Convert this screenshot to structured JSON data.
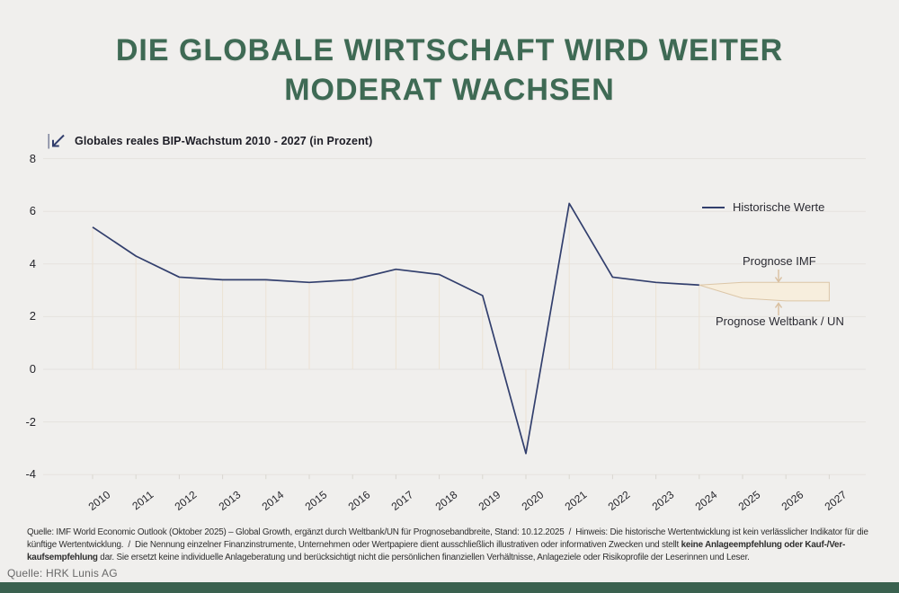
{
  "title": {
    "line1": "DIE GLOBALE WIRTSCHAFT WIRD WEITER",
    "line2": "MODERAT WACHSEN"
  },
  "chart": {
    "subtitle": "Globales reales BIP-Wachstum 2010 - 2027 (in Prozent)",
    "legend": {
      "historical": "Historische Werte"
    },
    "annotations": {
      "imf": "Prognose IMF",
      "wb_un": "Prognose Weltbank / UN"
    },
    "colors": {
      "background": "#f0efed",
      "title_green": "#3e6a54",
      "line_navy": "#323f6d",
      "band_fill": "#f7eedd",
      "band_stroke": "#dcc6a7",
      "arrow_tan": "#d9bf9f",
      "gridline": "#e5e2de",
      "stem": "#ece2d4",
      "axis_tick": "#d9d6d0",
      "bottom_bar_green": "#3a614f"
    }
  },
  "chart_data": {
    "type": "line",
    "title": "Globales reales BIP-Wachstum 2010 - 2027 (in Prozent)",
    "categories": [
      "2010",
      "2011",
      "2012",
      "2013",
      "2014",
      "2015",
      "2016",
      "2017",
      "2018",
      "2019",
      "2020",
      "2021",
      "2022",
      "2023",
      "2024",
      "2025",
      "2026",
      "2027"
    ],
    "y_ticks": [
      8,
      6,
      4,
      2,
      0,
      -2,
      -4
    ],
    "ylim": [
      -4.6,
      8
    ],
    "grid": "horizontal",
    "legend_position": "right",
    "series": [
      {
        "name": "Historische Werte",
        "type": "line",
        "color": "#323f6d",
        "years": [
          "2010",
          "2011",
          "2012",
          "2013",
          "2014",
          "2015",
          "2016",
          "2017",
          "2018",
          "2019",
          "2020",
          "2021",
          "2022",
          "2023",
          "2024"
        ],
        "values": [
          5.4,
          4.3,
          3.5,
          3.4,
          3.4,
          3.3,
          3.4,
          3.8,
          3.6,
          2.8,
          -3.2,
          6.3,
          3.5,
          3.3,
          3.2
        ]
      },
      {
        "name": "Prognose IMF",
        "type": "band-upper",
        "years": [
          "2024",
          "2025",
          "2026",
          "2027"
        ],
        "values": [
          3.2,
          3.3,
          3.3,
          3.3
        ]
      },
      {
        "name": "Prognose Weltbank / UN",
        "type": "band-lower",
        "years": [
          "2024",
          "2025",
          "2026",
          "2027"
        ],
        "values": [
          3.2,
          2.7,
          2.6,
          2.6
        ]
      }
    ]
  },
  "footer": {
    "lines": [
      [
        {
          "t": "Quelle: IMF World Economic Outlook (Oktober 2025) – Global Growth, ergänzt durch Weltbank/UN für Prognosebandbreite, Stand: 10.12.2025  /  Hinweis: Die historische Wertentwicklung ist kein verlässlicher Indikator für die",
          "b": false
        }
      ],
      [
        {
          "t": "künftige Wertentwicklung.  /  Die Nennung einzelner Finanzinstrumente, Unternehmen oder Wertpapiere dient ausschließlich illustrativen oder informativen Zwecken und stellt ",
          "b": false
        },
        {
          "t": "keine Anlageempfehlung oder Kauf-/Ver-",
          "b": true
        }
      ],
      [
        {
          "t": "kaufsempfehlung",
          "b": true
        },
        {
          "t": " dar. Sie ersetzt keine individuelle Anlageberatung und berücksichtigt nicht die persönlichen finanziellen Verhältnisse, Anlageziele oder Risikoprofile der Leserinnen und Leser.",
          "b": false
        }
      ]
    ]
  },
  "source": "Quelle: HRK Lunis AG"
}
